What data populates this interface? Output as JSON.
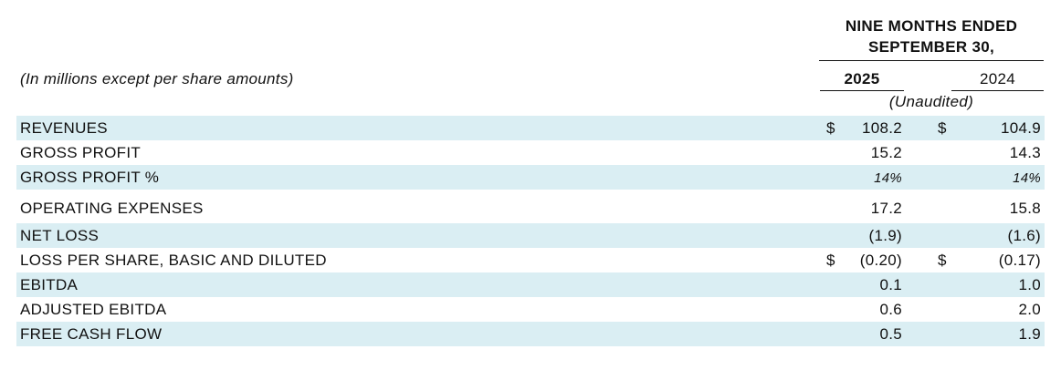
{
  "header": {
    "period": [
      "NINE MONTHS ENDED",
      "SEPTEMBER 30,"
    ],
    "units": "(In millions except per share amounts)",
    "columns": [
      "2025",
      "2024"
    ],
    "audit_note": "(Unaudited)"
  },
  "table": {
    "rows": [
      {
        "label": "REVENUES",
        "cells": [
          {
            "currency": "$",
            "value": "108.2"
          },
          {
            "currency": "$",
            "value": "104.9"
          }
        ]
      },
      {
        "label": "GROSS PROFIT",
        "cells": [
          {
            "value": "15.2"
          },
          {
            "value": "14.3"
          }
        ]
      },
      {
        "label": "GROSS  PROFIT %",
        "cells": [
          {
            "value": "14%"
          },
          {
            "value": "14%"
          }
        ]
      },
      {
        "label": "OPERATING EXPENSES",
        "cells": [
          {
            "value": "17.2"
          },
          {
            "value": "15.8"
          }
        ]
      },
      {
        "label": "NET LOSS",
        "cells": [
          {
            "value": "(1.9)"
          },
          {
            "value": "(1.6)"
          }
        ]
      },
      {
        "label": "LOSS PER SHARE, BASIC AND DILUTED",
        "cells": [
          {
            "currency": "$",
            "value": "(0.20)"
          },
          {
            "currency": "$",
            "value": "(0.17)"
          }
        ]
      },
      {
        "label": "EBITDA",
        "cells": [
          {
            "value": "0.1"
          },
          {
            "value": "1.0"
          }
        ]
      },
      {
        "label": "ADJUSTED EBITDA",
        "cells": [
          {
            "value": "0.6"
          },
          {
            "value": "2.0"
          }
        ]
      },
      {
        "label": "FREE CASH FLOW",
        "cells": [
          {
            "value": "0.5"
          },
          {
            "value": "1.9"
          }
        ]
      }
    ]
  }
}
